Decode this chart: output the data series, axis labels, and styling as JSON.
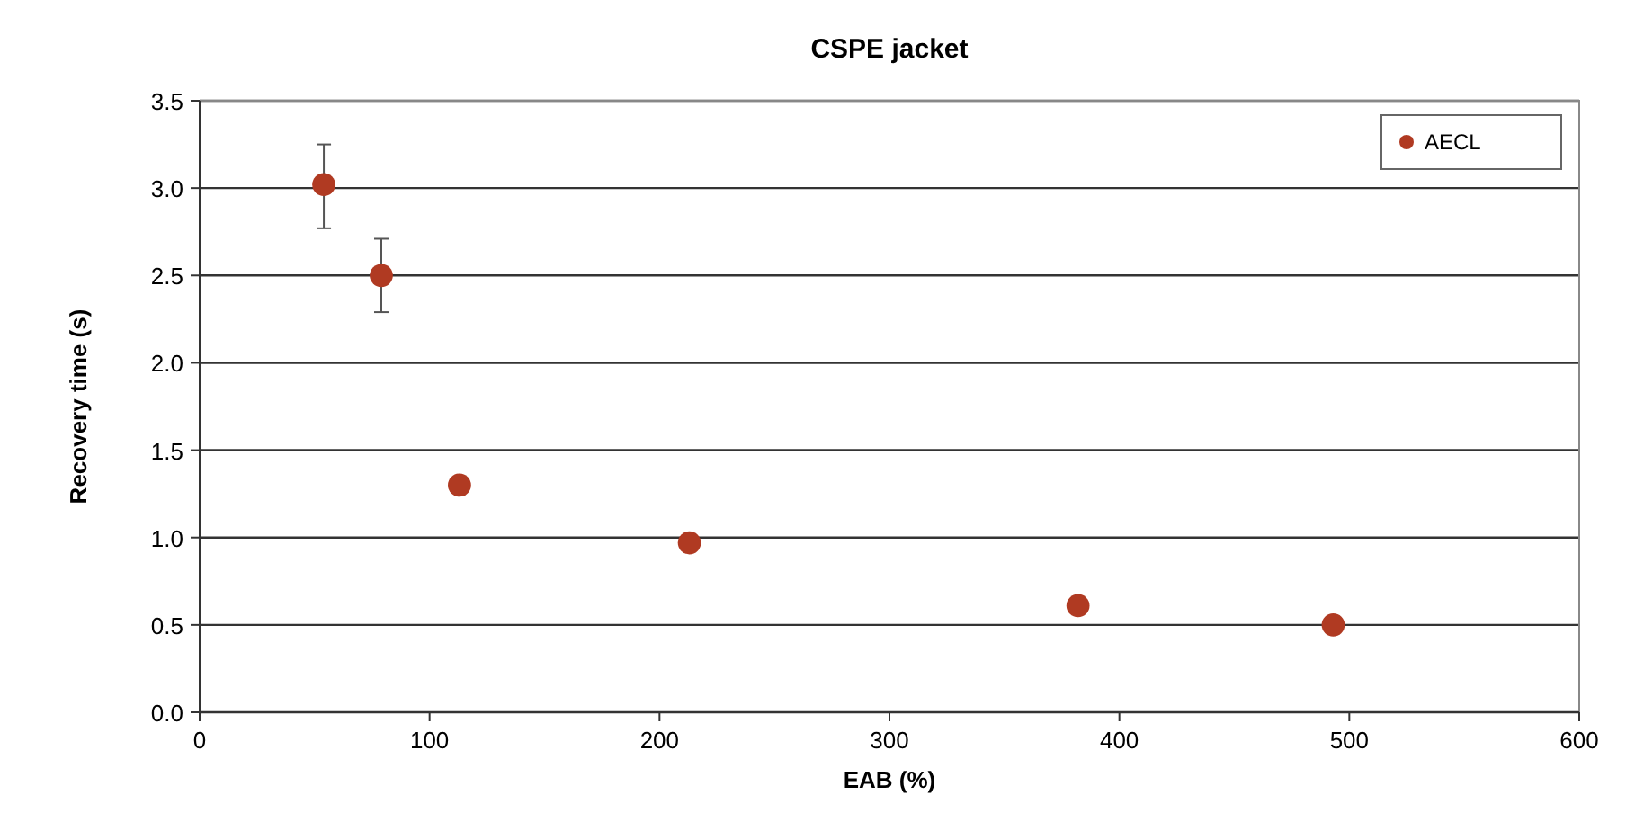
{
  "chart_data": {
    "type": "scatter",
    "title": "CSPE jacket",
    "xlabel": "EAB (%)",
    "ylabel": "Recovery time (s)",
    "x": [
      54,
      79,
      113,
      213,
      382,
      493
    ],
    "series": [
      {
        "name": "AECL",
        "color": "#b03a22",
        "values": [
          3.02,
          2.5,
          1.3,
          0.97,
          0.61,
          0.5
        ],
        "errors": [
          [
            2.77,
            3.25
          ],
          [
            2.29,
            2.71
          ],
          null,
          null,
          null,
          null
        ]
      }
    ],
    "xlim": [
      0,
      600
    ],
    "xticks": [
      0,
      100,
      200,
      300,
      400,
      500,
      600
    ],
    "ylim": [
      0,
      3.5
    ],
    "yticks": [
      {
        "value": 0,
        "label": "0.0"
      },
      {
        "value": 0.5,
        "label": "0.5"
      },
      {
        "value": 1,
        "label": "1.0"
      },
      {
        "value": 1.5,
        "label": "1.5"
      },
      {
        "value": 2,
        "label": "2.0"
      },
      {
        "value": 2.5,
        "label": "2.5"
      },
      {
        "value": 3,
        "label": "3.0"
      },
      {
        "value": 3.5,
        "label": "3.5"
      }
    ],
    "grid": "y",
    "legend": "top right",
    "marker": "circle"
  }
}
